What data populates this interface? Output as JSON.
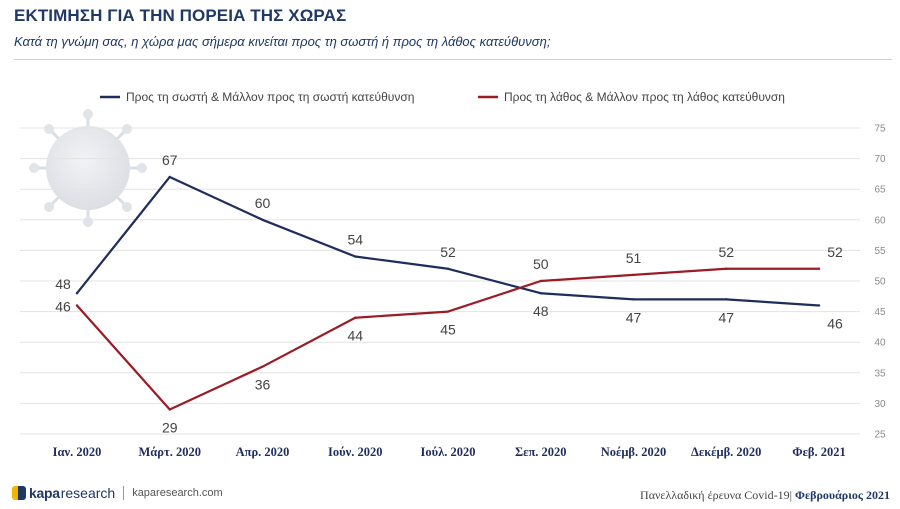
{
  "header": {
    "title": "ΕΚΤΙΜΗΣΗ ΓΙΑ ΤΗΝ ΠΟΡΕΙΑ ΤΗΣ ΧΩΡΑΣ",
    "subtitle": "Κατά τη γνώμη σας, η χώρα μας σήμερα κινείται προς τη σωστή ή προς τη λάθος κατεύθυνση;"
  },
  "chart_data": {
    "type": "line",
    "title": "",
    "xlabel": "",
    "ylabel": "",
    "categories": [
      "Ιαν. 2020",
      "Μάρτ. 2020",
      "Απρ. 2020",
      "Ιούν. 2020",
      "Ιούλ. 2020",
      "Σεπ. 2020",
      "Νοέμβ. 2020",
      "Δεκέμβ. 2020",
      "Φεβ. 2021"
    ],
    "ylim": [
      25,
      75
    ],
    "yticks": [
      25,
      30,
      35,
      40,
      45,
      50,
      55,
      60,
      65,
      70,
      75
    ],
    "axis_side": "right",
    "grid": true,
    "legend_position": "top",
    "series": [
      {
        "name": "Προς τη σωστή & Μάλλον προς τη σωστή κατεύθυνση",
        "color": "#1f2d5c",
        "values": [
          48,
          67,
          60,
          54,
          52,
          48,
          47,
          47,
          46
        ],
        "label_pos": [
          "above",
          "above",
          "above",
          "above",
          "above",
          "below",
          "below",
          "below",
          "below"
        ]
      },
      {
        "name": "Προς τη λάθος & Μάλλον προς τη λάθος κατεύθυνση",
        "color": "#9b1c24",
        "values": [
          46,
          29,
          36,
          44,
          45,
          50,
          51,
          52,
          52
        ],
        "label_pos": [
          "below",
          "below",
          "below",
          "below",
          "below",
          "above",
          "above",
          "above",
          "above"
        ]
      }
    ]
  },
  "footer": {
    "brand_kapa": "kapa",
    "brand_research": "research",
    "url": "kaparesearch.com",
    "survey": "Πανελλαδική έρευνα Covid-19|",
    "date": "Φεβρουάριος 2021"
  },
  "icons": {
    "background": "virus-icon"
  }
}
